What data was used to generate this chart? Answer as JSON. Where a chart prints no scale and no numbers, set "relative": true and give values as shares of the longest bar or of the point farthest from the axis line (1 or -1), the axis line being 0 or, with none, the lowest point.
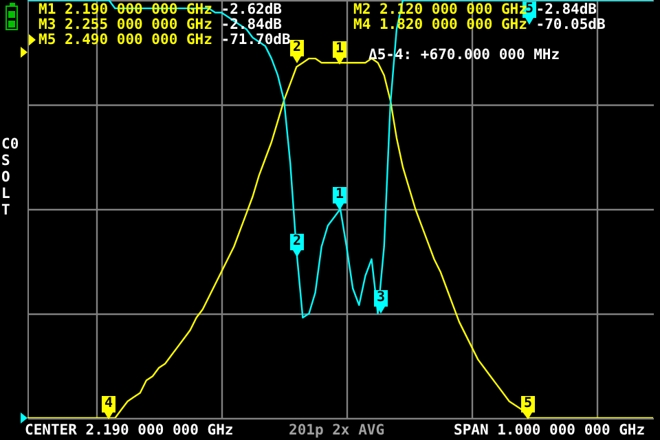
{
  "chart_data": {
    "type": "line",
    "relative": true,
    "grid": true,
    "categories": [
      null,
      null,
      null,
      null,
      null,
      null,
      null,
      null,
      null,
      null,
      null,
      null,
      null,
      null,
      null,
      null,
      null,
      null,
      null,
      null,
      null,
      null,
      null,
      null,
      null,
      null,
      null,
      null,
      null,
      null,
      null,
      null,
      null,
      null,
      null,
      null,
      null,
      null,
      null,
      null,
      null,
      null,
      null,
      null,
      null,
      null,
      null,
      null,
      null,
      null,
      null,
      null,
      null,
      null,
      null,
      null,
      null,
      null,
      null,
      null,
      null,
      null,
      null,
      null,
      null,
      null,
      null,
      null,
      null,
      null,
      null,
      null,
      null,
      null,
      null,
      null,
      null,
      null,
      null,
      null,
      null,
      null,
      null,
      null,
      null,
      null,
      null,
      null,
      null,
      null,
      null,
      null,
      null,
      null,
      null,
      null,
      null,
      null,
      null,
      null,
      null
    ],
    "series": [
      {
        "color": "#ffff00",
        "values": [
          0,
          0,
          0,
          0,
          0,
          0,
          0,
          0,
          0,
          0,
          0,
          0,
          0,
          0,
          0,
          0.02,
          0.04,
          0.05,
          0.06,
          0.09,
          0.1,
          0.12,
          0.13,
          0.15,
          0.17,
          0.19,
          0.21,
          0.24,
          0.26,
          0.29,
          0.32,
          0.35,
          0.38,
          0.41,
          0.45,
          0.49,
          0.53,
          0.58,
          0.62,
          0.66,
          0.71,
          0.76,
          0.8,
          0.84,
          0.85,
          0.86,
          0.86,
          0.85,
          0.85,
          0.85,
          0.85,
          0.85,
          0.85,
          0.85,
          0.85,
          0.86,
          0.85,
          0.82,
          0.76,
          0.67,
          0.6,
          0.55,
          0.5,
          0.46,
          0.42,
          0.38,
          0.35,
          0.31,
          0.27,
          0.23,
          0.2,
          0.17,
          0.14,
          0.12,
          0.1,
          0.08,
          0.06,
          0.04,
          0.03,
          0.02,
          0,
          0,
          0,
          0,
          0,
          0,
          0,
          0,
          0,
          0,
          0,
          0,
          0,
          0,
          0,
          0,
          0,
          0,
          0,
          0,
          0
        ]
      },
      {
        "color": "#00ffff",
        "values": [
          1,
          1,
          1,
          1,
          1,
          1,
          1,
          1,
          1,
          1,
          1,
          1,
          1,
          1,
          0.98,
          0.98,
          0.98,
          0.98,
          0.98,
          0.98,
          0.98,
          0.98,
          0.98,
          0.98,
          0.98,
          0.98,
          0.98,
          0.98,
          0.98,
          0.98,
          0.97,
          0.97,
          0.96,
          0.95,
          0.94,
          0.93,
          0.91,
          0.9,
          0.89,
          0.86,
          0.82,
          0.76,
          0.61,
          0.4,
          0.24,
          0.25,
          0.3,
          0.41,
          0.46,
          0.48,
          0.5,
          0.41,
          0.31,
          0.27,
          0.34,
          0.38,
          0.25,
          0.41,
          0.75,
          0.93,
          1,
          1,
          1,
          1,
          1,
          1,
          1,
          1,
          1,
          1,
          1,
          1,
          1,
          1,
          1,
          1,
          1,
          1,
          1,
          1,
          1,
          1,
          1,
          1,
          1,
          1,
          1,
          1,
          1,
          1,
          1,
          1,
          1,
          1,
          1,
          1,
          1,
          1,
          1,
          1,
          1
        ]
      }
    ],
    "annotations": [
      "M1 2.190 000 000 GHz -2.62dB",
      "M3 2.255 000 000 GHz -2.84dB",
      "M5 2.490 000 000 GHz -71.70dB",
      "M2 2.120 000 000 GHz -2.84dB",
      "M4 1.820 000 000 GHz -70.05dB",
      "Δ5-4: +670.000 000 MHz",
      "CENTER 2.190 000 000 GHz",
      "201p 2x AVG",
      "SPAN 1.000 000 000 GHz",
      "C0",
      "SOLT",
      "1",
      "2",
      "4",
      "5",
      "1",
      "2",
      "3",
      "5"
    ]
  }
}
